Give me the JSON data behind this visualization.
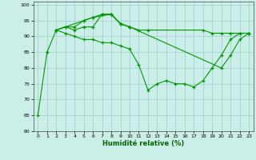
{
  "xlabel": "Humidité relative (%)",
  "background_color": "#cceee8",
  "grid_color": "#99cccc",
  "line_color": "#009900",
  "xlim": [
    -0.5,
    23.5
  ],
  "ylim": [
    60,
    101
  ],
  "yticks": [
    60,
    65,
    70,
    75,
    80,
    85,
    90,
    95,
    100
  ],
  "xticks": [
    0,
    1,
    2,
    3,
    4,
    5,
    6,
    7,
    8,
    9,
    10,
    11,
    12,
    13,
    14,
    15,
    16,
    17,
    18,
    19,
    20,
    21,
    22,
    23
  ],
  "connected_lines": [
    {
      "x": [
        0,
        1,
        2,
        3,
        4,
        5,
        6,
        7,
        8,
        9,
        10,
        11,
        12,
        13,
        14,
        15,
        16,
        17,
        18,
        19,
        20,
        21,
        22,
        23
      ],
      "y": [
        65,
        85,
        92,
        91,
        90,
        89,
        89,
        88,
        88,
        87,
        86,
        81,
        73,
        75,
        76,
        75,
        75,
        74,
        76,
        80,
        84,
        89,
        91,
        91
      ]
    },
    {
      "x": [
        2,
        3,
        4,
        5,
        6,
        7,
        8,
        9,
        10,
        11,
        12,
        18,
        19,
        20,
        21,
        22,
        23
      ],
      "y": [
        92,
        93,
        93,
        95,
        96,
        97,
        97,
        94,
        93,
        92,
        92,
        92,
        91,
        91,
        91,
        91,
        91
      ]
    },
    {
      "x": [
        2,
        3,
        4,
        5,
        6,
        7,
        8,
        9,
        10
      ],
      "y": [
        92,
        93,
        92,
        93,
        93,
        97,
        97,
        94,
        93
      ]
    },
    {
      "x": [
        2,
        5,
        6,
        8,
        9,
        10,
        20,
        21,
        22,
        23
      ],
      "y": [
        92,
        95,
        96,
        97,
        94,
        93,
        80,
        84,
        89,
        91
      ]
    }
  ]
}
